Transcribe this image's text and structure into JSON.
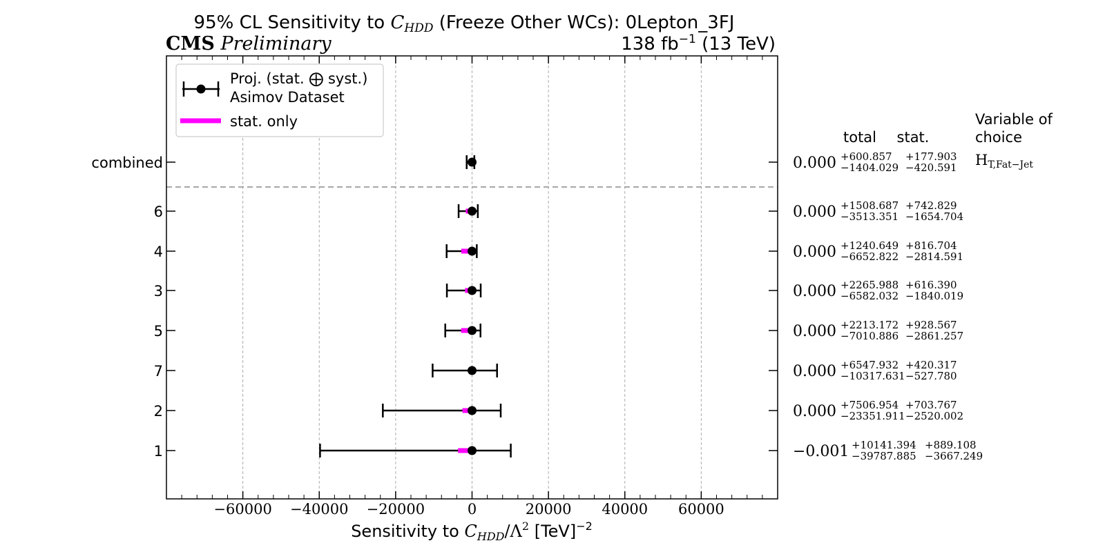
{
  "header": {
    "title_prefix": "95% CL Sensitivity to ",
    "title_var": "C",
    "title_var_sub": "HDD",
    "title_suffix": " (Freeze Other WCs): 0Lepton_3FJ",
    "experiment": "CMS",
    "status": "Preliminary",
    "lumi_value": "138 fb",
    "lumi_exp": "−1",
    "lumi_energy": " (13 TeV)"
  },
  "legend": {
    "entry_total_line1": "Proj. (stat. ⨁ syst.)",
    "entry_total_line2": "Asimov Dataset",
    "entry_stat": "stat. only"
  },
  "table_headers": {
    "total": "total",
    "stat": "stat.",
    "variable_line1": "Variable of",
    "variable_line2": "choice"
  },
  "variable_of_choice": {
    "main": "H",
    "sub": "T,Fat−Jet"
  },
  "xaxis_label": {
    "prefix": "Sensitivity to ",
    "var": "C",
    "sub": "HDD",
    "mid": "/Λ",
    "sup": "2",
    "unit": " [TeV]",
    "unit_sup": "−2"
  },
  "colors": {
    "total": "#000000",
    "stat": "#ff00ff",
    "grid": "#aaaaaa",
    "separator": "#999999"
  },
  "chart_data": {
    "type": "errorbar",
    "xlim": [
      -80000,
      80000
    ],
    "xticks": [
      -60000,
      -40000,
      -20000,
      0,
      20000,
      40000,
      60000
    ],
    "xtick_labels": [
      "−60000",
      "−40000",
      "−20000",
      "0",
      "20000",
      "40000",
      "60000"
    ],
    "grid": "vertical-dashed",
    "legend_position": "top-left",
    "points": [
      {
        "label": "combined",
        "center": 0.0,
        "center_text": "0.000",
        "total_up": 600.857,
        "total_down": 1404.029,
        "stat_up": 177.903,
        "stat_down": 420.591,
        "total_up_text": "+600.857",
        "total_down_text": "−1404.029",
        "stat_up_text": "+177.903",
        "stat_down_text": "−420.591"
      },
      {
        "label": "6",
        "center": 0.0,
        "center_text": "0.000",
        "total_up": 1508.687,
        "total_down": 3513.351,
        "stat_up": 742.829,
        "stat_down": 1654.704,
        "total_up_text": "+1508.687",
        "total_down_text": "−3513.351",
        "stat_up_text": "+742.829",
        "stat_down_text": "−1654.704"
      },
      {
        "label": "4",
        "center": 0.0,
        "center_text": "0.000",
        "total_up": 1240.649,
        "total_down": 6652.822,
        "stat_up": 816.704,
        "stat_down": 2814.591,
        "total_up_text": "+1240.649",
        "total_down_text": "−6652.822",
        "stat_up_text": "+816.704",
        "stat_down_text": "−2814.591"
      },
      {
        "label": "3",
        "center": 0.0,
        "center_text": "0.000",
        "total_up": 2265.988,
        "total_down": 6582.032,
        "stat_up": 616.39,
        "stat_down": 1840.019,
        "total_up_text": "+2265.988",
        "total_down_text": "−6582.032",
        "stat_up_text": "+616.390",
        "stat_down_text": "−1840.019"
      },
      {
        "label": "5",
        "center": 0.0,
        "center_text": "0.000",
        "total_up": 2213.172,
        "total_down": 7010.886,
        "stat_up": 928.567,
        "stat_down": 2861.257,
        "total_up_text": "+2213.172",
        "total_down_text": "−7010.886",
        "stat_up_text": "+928.567",
        "stat_down_text": "−2861.257"
      },
      {
        "label": "7",
        "center": 0.0,
        "center_text": "0.000",
        "total_up": 6547.932,
        "total_down": 10317.631,
        "stat_up": 420.317,
        "stat_down": 527.78,
        "total_up_text": "+6547.932",
        "total_down_text": "−10317.631",
        "stat_up_text": "+420.317",
        "stat_down_text": "−527.780"
      },
      {
        "label": "2",
        "center": 0.0,
        "center_text": "0.000",
        "total_up": 7506.954,
        "total_down": 23351.911,
        "stat_up": 703.767,
        "stat_down": 2520.002,
        "total_up_text": "+7506.954",
        "total_down_text": "−23351.911",
        "stat_up_text": "+703.767",
        "stat_down_text": "−2520.002"
      },
      {
        "label": "1",
        "center": -0.001,
        "center_text": "−0.001",
        "total_up": 10141.394,
        "total_down": 39787.885,
        "stat_up": 889.108,
        "stat_down": 3667.249,
        "total_up_text": "+10141.394",
        "total_down_text": "−39787.885",
        "stat_up_text": "+889.108",
        "stat_down_text": "−3667.249"
      }
    ]
  }
}
